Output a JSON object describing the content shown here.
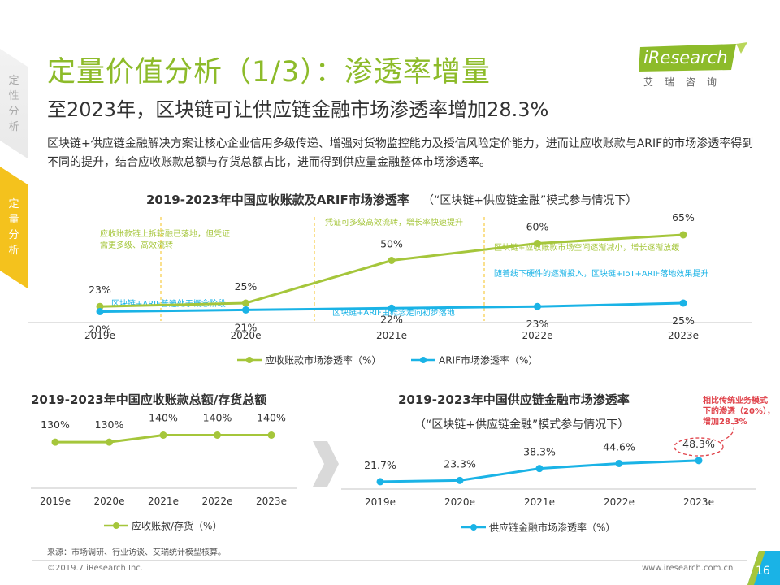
{
  "side_nav": {
    "items": [
      {
        "label": "定性分析",
        "chars": [
          "定",
          "性",
          "分",
          "析"
        ]
      },
      {
        "label": "定量分析",
        "chars": [
          "定",
          "量",
          "分",
          "析"
        ]
      }
    ]
  },
  "header": {
    "title": "定量价值分析（1/3）：渗透率增量",
    "subtitle": "至2023年，区块链可让供应链金融市场渗透率增加28.3%"
  },
  "logo": {
    "text": "iResearch",
    "sub": "艾瑞咨询"
  },
  "description": "区块链+供应链金融解决方案让核心企业信用多级传递、增强对货物监控能力及授信风险定价能力，进而让应收账款与ARIF的市场渗透率得到不同的提升，结合应收账款总额与存货总额占比，进而得到供应量金融整体市场渗透率。",
  "chart_data": [
    {
      "type": "line",
      "title": "2019-2023年中国应收账款及ARIF市场渗透率",
      "subtitle": "（“区块链+供应链金融”模式参与情况下）",
      "categories": [
        "2019e",
        "2020e",
        "2021e",
        "2022e",
        "2023e"
      ],
      "series": [
        {
          "name": "应收账款市场渗透率（%）",
          "values": [
            23,
            25,
            50,
            60,
            65
          ],
          "labels": [
            "23%",
            "25%",
            "50%",
            "60%",
            "65%"
          ],
          "color": "#a5c63b"
        },
        {
          "name": "ARIF市场渗透率（%）",
          "values": [
            20,
            21,
            22,
            23,
            25
          ],
          "labels": [
            "20%",
            "21%",
            "22%",
            "23%",
            "25%"
          ],
          "color": "#1ab3e6"
        }
      ],
      "annotations": [
        {
          "text": "应收账款链上拆转融已落地，但凭证",
          "color": "#a5c63b"
        },
        {
          "text": "需更多级、高效流转",
          "color": "#a5c63b"
        },
        {
          "text": "凭证可多级高效流转，增长率快速提升",
          "color": "#a5c63b"
        },
        {
          "text": "区块链+应收账款市场空间逐渐减小，增长逐渐放缓",
          "color": "#a5c63b"
        },
        {
          "text": "区块链+ARIF普遍处于概念阶段",
          "color": "#1ab3e6"
        },
        {
          "text": "区块链+ARIF由概念走向初步落地",
          "color": "#1ab3e6"
        },
        {
          "text": "随着线下硬件的逐渐投入，区块链+IoT+ARIF落地效果提升",
          "color": "#1ab3e6"
        }
      ],
      "ylim": [
        0,
        80
      ]
    },
    {
      "type": "line",
      "title": "2019-2023年中国应收账款总额/存货总额",
      "categories": [
        "2019e",
        "2020e",
        "2021e",
        "2022e",
        "2023e"
      ],
      "series": [
        {
          "name": "应收账款/存货（%）",
          "values": [
            130,
            130,
            140,
            140,
            140
          ],
          "labels": [
            "130%",
            "130%",
            "140%",
            "140%",
            "140%"
          ],
          "color": "#a5c63b"
        }
      ],
      "ylim": [
        0,
        200
      ]
    },
    {
      "type": "line",
      "title": "2019-2023年中国供应链金融市场渗透率",
      "subtitle": "（“区块链+供应链金融”模式参与情况下）",
      "categories": [
        "2019e",
        "2020e",
        "2021e",
        "2022e",
        "2023e"
      ],
      "series": [
        {
          "name": "供应链金融市场渗透率（%）",
          "values": [
            21.7,
            23.3,
            38.3,
            44.6,
            48.3
          ],
          "labels": [
            "21.7%",
            "23.3%",
            "38.3%",
            "44.6%",
            "48.3%"
          ],
          "color": "#1ab3e6"
        }
      ],
      "annotation": {
        "lines": [
          "相比传统业务模式",
          "下的渗透（20%），",
          "增加28.3%"
        ],
        "color": "#e0434b"
      },
      "ylim": [
        0,
        100
      ]
    }
  ],
  "footer": {
    "source": "来源：市场调研、行业访谈、艾瑞统计模型核算。",
    "copyright": "©2019.7 iResearch Inc.",
    "url": "www.iresearch.com.cn",
    "page": "16"
  },
  "colors": {
    "green": "#a5c63b",
    "blue": "#1ab3e6",
    "title_green": "#8dbb2a",
    "tab_yellow": "#f4c21d",
    "red": "#e0434b"
  }
}
